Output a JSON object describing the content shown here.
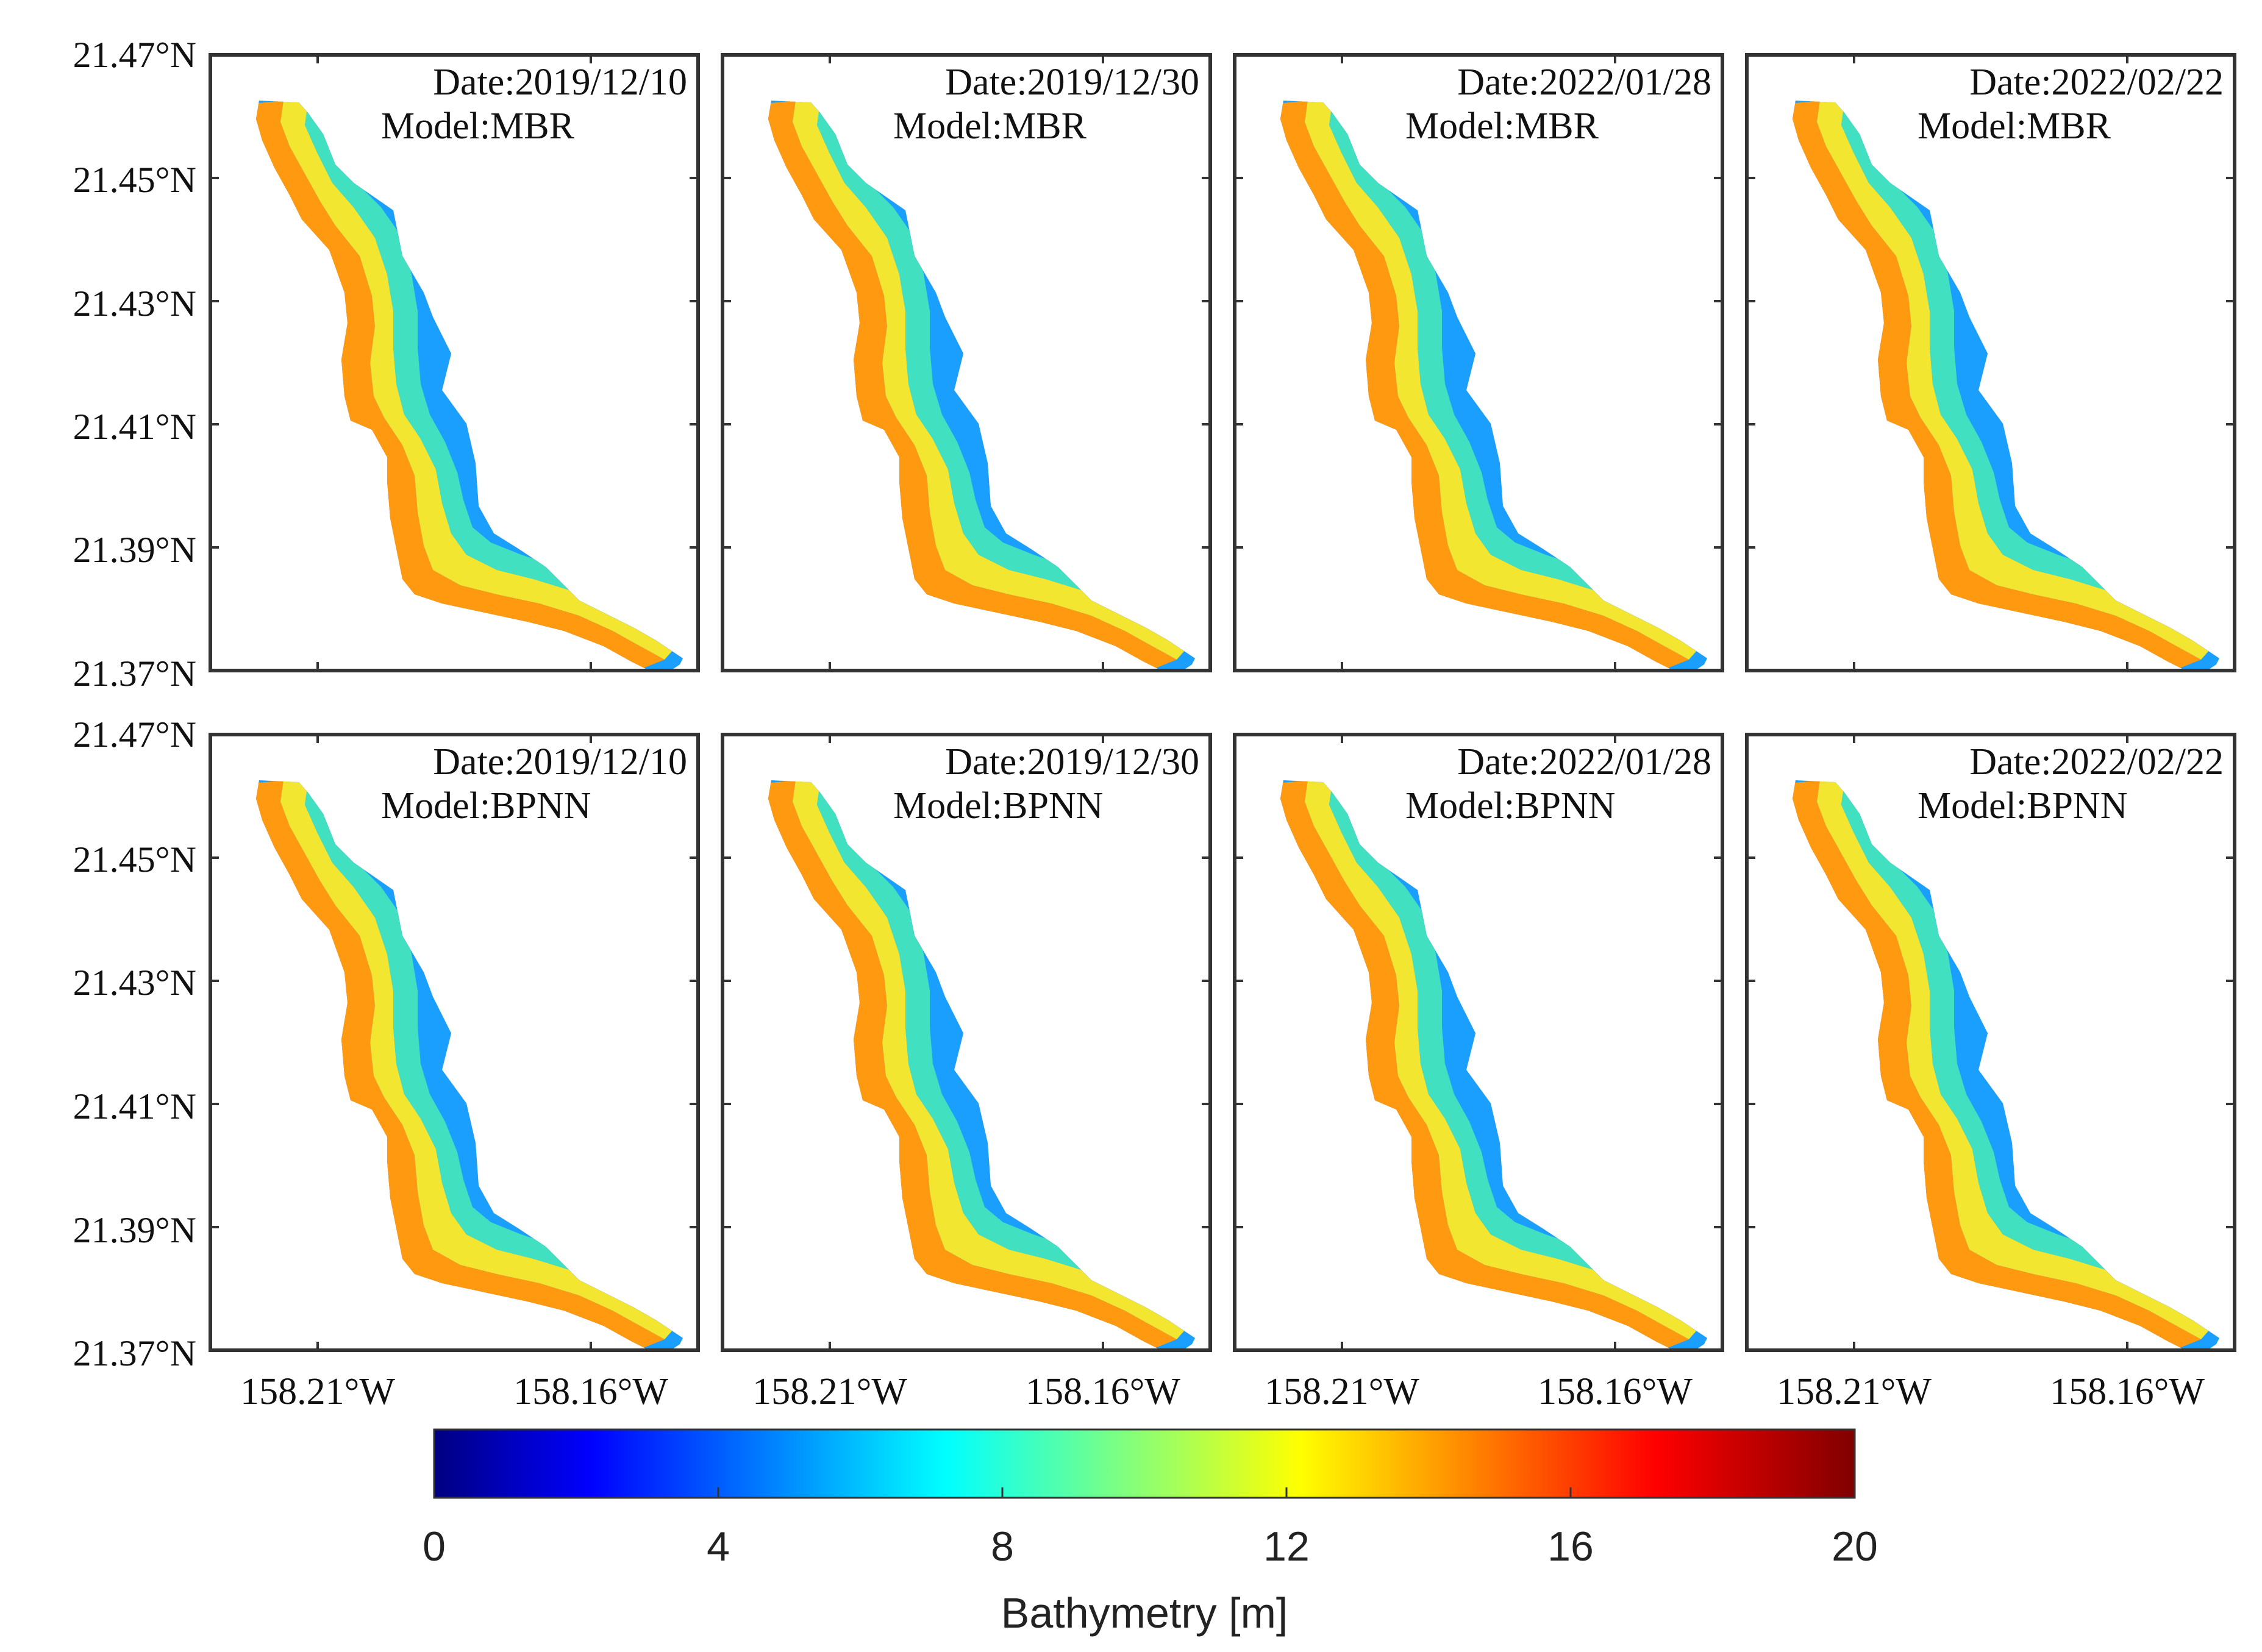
{
  "figure": {
    "rows": [
      {
        "model_label": "Model:MBR"
      },
      {
        "model_label": "Model:BPNN"
      }
    ],
    "columns": [
      {
        "date_label": "Date:2019/12/10"
      },
      {
        "date_label": "Date:2019/12/30"
      },
      {
        "date_label": "Date:2022/01/28"
      },
      {
        "date_label": "Date:2022/02/22"
      }
    ],
    "lat_ticks": [
      "21.47°N",
      "21.45°N",
      "21.43°N",
      "21.41°N",
      "21.39°N",
      "21.37°N"
    ],
    "lon_ticks": [
      "158.21°W",
      "158.16°W"
    ]
  },
  "chart_data": {
    "type": "heatmap",
    "title": "",
    "variable": "Bathymetry [m]",
    "lat_range": [
      21.37,
      21.47
    ],
    "lon_ticks_values": [
      -158.21,
      -158.16
    ],
    "panels": [
      {
        "date": "2019/12/10",
        "model": "MBR"
      },
      {
        "date": "2019/12/30",
        "model": "MBR"
      },
      {
        "date": "2022/01/28",
        "model": "MBR"
      },
      {
        "date": "2022/02/22",
        "model": "MBR"
      },
      {
        "date": "2019/12/10",
        "model": "BPNN"
      },
      {
        "date": "2019/12/30",
        "model": "BPNN"
      },
      {
        "date": "2022/01/28",
        "model": "BPNN"
      },
      {
        "date": "2022/02/22",
        "model": "BPNN"
      }
    ],
    "colorbar": {
      "label": "Bathymetry [m]",
      "min": 0,
      "max": 20,
      "ticks": [
        "0",
        "4",
        "8",
        "12",
        "16",
        "20"
      ],
      "colormap": "jet",
      "colors": [
        "#000080",
        "#0000ff",
        "#0080ff",
        "#00ffff",
        "#80ff80",
        "#ffff00",
        "#ff8000",
        "#ff0000",
        "#800000"
      ]
    }
  }
}
